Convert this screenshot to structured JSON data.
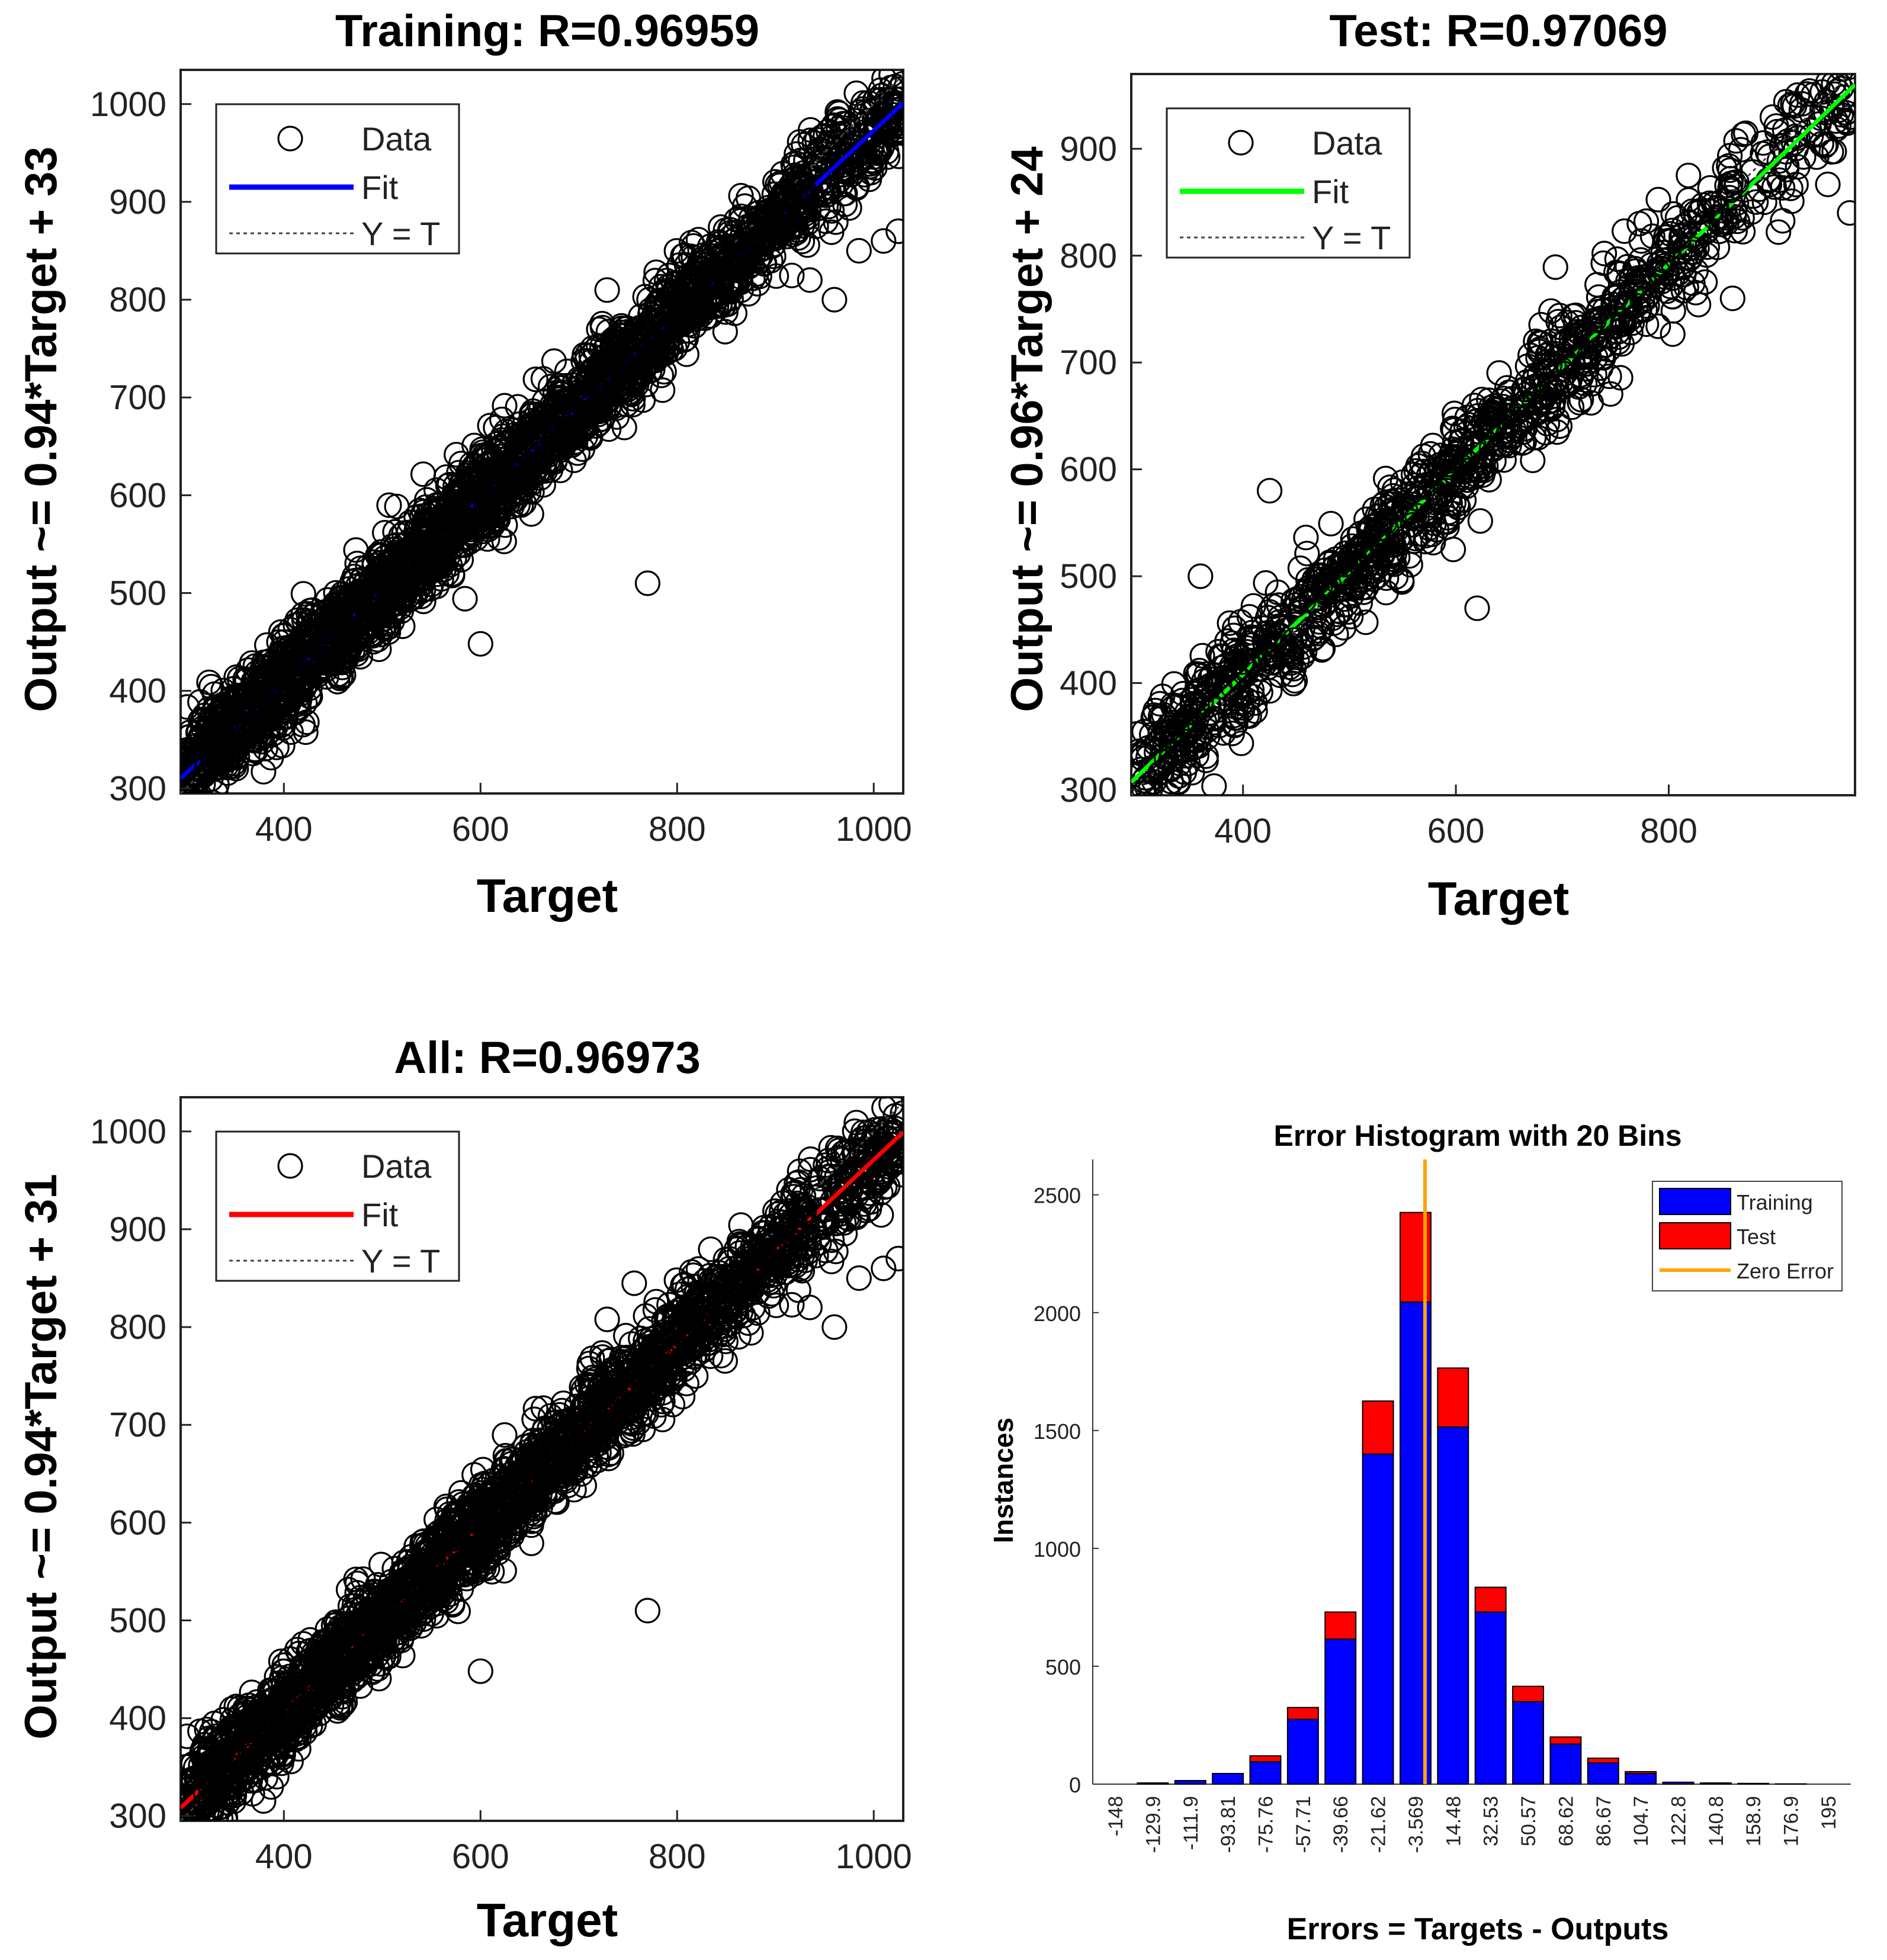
{
  "chart_data": [
    {
      "id": "training",
      "type": "scatter",
      "title": "Training: R=0.96959",
      "xlabel": "Target",
      "ylabel": "Output ~= 0.94*Target + 33",
      "xlim": [
        295,
        1030
      ],
      "ylim": [
        295,
        1035
      ],
      "xticks": [
        "400",
        "600",
        "800",
        "1000"
      ],
      "yticks": [
        "300",
        "400",
        "500",
        "600",
        "700",
        "800",
        "900",
        "1000"
      ],
      "legend": {
        "position": "top-left",
        "entries": [
          "Data",
          "Fit",
          "Y = T"
        ]
      },
      "fit": {
        "slope": 0.94,
        "intercept": 33,
        "color": "#0000ff"
      },
      "identity_line": true,
      "data_cloud": {
        "x_range": [
          300,
          1030
        ],
        "outliers": [
          [
            600,
            448
          ],
          [
            770,
            510
          ],
          [
            935,
            820
          ],
          [
            960,
            800
          ],
          [
            985,
            850
          ],
          [
            1010,
            860
          ],
          [
            1025,
            870
          ]
        ]
      }
    },
    {
      "id": "test",
      "type": "scatter",
      "title": "Test: R=0.97069",
      "xlabel": "Target",
      "ylabel": "Output ~= 0.96*Target + 24",
      "xlim": [
        295,
        975
      ],
      "ylim": [
        295,
        970
      ],
      "xticks": [
        "400",
        "600",
        "800"
      ],
      "yticks": [
        "300",
        "400",
        "500",
        "600",
        "700",
        "800",
        "900"
      ],
      "legend": {
        "position": "top-left",
        "entries": [
          "Data",
          "Fit",
          "Y = T"
        ]
      },
      "fit": {
        "slope": 0.96,
        "intercept": 24,
        "color": "#00ff00"
      },
      "identity_line": true,
      "data_cloud": {
        "x_range": [
          300,
          970
        ],
        "outliers": [
          [
            360,
            500
          ],
          [
            425,
            580
          ],
          [
            620,
            470
          ],
          [
            860,
            760
          ],
          [
            970,
            840
          ],
          [
            960,
            960
          ]
        ]
      }
    },
    {
      "id": "all",
      "type": "scatter",
      "title": "All: R=0.96973",
      "xlabel": "Target",
      "ylabel": "Output ~= 0.94*Target + 31",
      "xlim": [
        295,
        1030
      ],
      "ylim": [
        295,
        1035
      ],
      "xticks": [
        "400",
        "600",
        "800",
        "1000"
      ],
      "yticks": [
        "300",
        "400",
        "500",
        "600",
        "700",
        "800",
        "900",
        "1000"
      ],
      "legend": {
        "position": "top-left",
        "entries": [
          "Data",
          "Fit",
          "Y = T"
        ]
      },
      "fit": {
        "slope": 0.94,
        "intercept": 31,
        "color": "#ff0000"
      },
      "identity_line": true,
      "data_cloud": {
        "x_range": [
          300,
          1030
        ],
        "outliers": [
          [
            600,
            448
          ],
          [
            770,
            510
          ],
          [
            935,
            820
          ],
          [
            960,
            800
          ],
          [
            985,
            850
          ],
          [
            1010,
            860
          ],
          [
            1025,
            870
          ]
        ]
      }
    },
    {
      "id": "histogram",
      "type": "bar",
      "stacked": true,
      "title": "Error Histogram with 20 Bins",
      "xlabel": "Errors = Targets - Outputs",
      "ylabel": "Instances",
      "ylim": [
        0,
        2650
      ],
      "yticks": [
        "0",
        "500",
        "1000",
        "1500",
        "2000",
        "2500"
      ],
      "categories": [
        "-148",
        "-129.9",
        "-111.9",
        "-93.81",
        "-75.76",
        "-57.71",
        "-39.66",
        "-21.62",
        "-3.569",
        "14.48",
        "32.53",
        "50.57",
        "68.62",
        "86.67",
        "104.7",
        "122.8",
        "140.8",
        "158.9",
        "176.9",
        "195"
      ],
      "series": [
        {
          "name": "Training",
          "color": "#0000ff",
          "values": [
            0,
            5,
            15,
            45,
            95,
            275,
            615,
            1400,
            2045,
            1515,
            730,
            350,
            170,
            90,
            45,
            8,
            5,
            3,
            1,
            0
          ]
        },
        {
          "name": "Test",
          "color": "#ff0000",
          "values": [
            0,
            0,
            0,
            0,
            25,
            50,
            115,
            225,
            380,
            250,
            105,
            65,
            30,
            20,
            8,
            0,
            0,
            0,
            0,
            0
          ]
        }
      ],
      "zero_error": {
        "label": "Zero Error",
        "x_category_index": 8,
        "color": "#ffa500"
      },
      "legend": {
        "position": "top-right",
        "entries": [
          "Training",
          "Test",
          "Zero Error"
        ]
      }
    }
  ]
}
